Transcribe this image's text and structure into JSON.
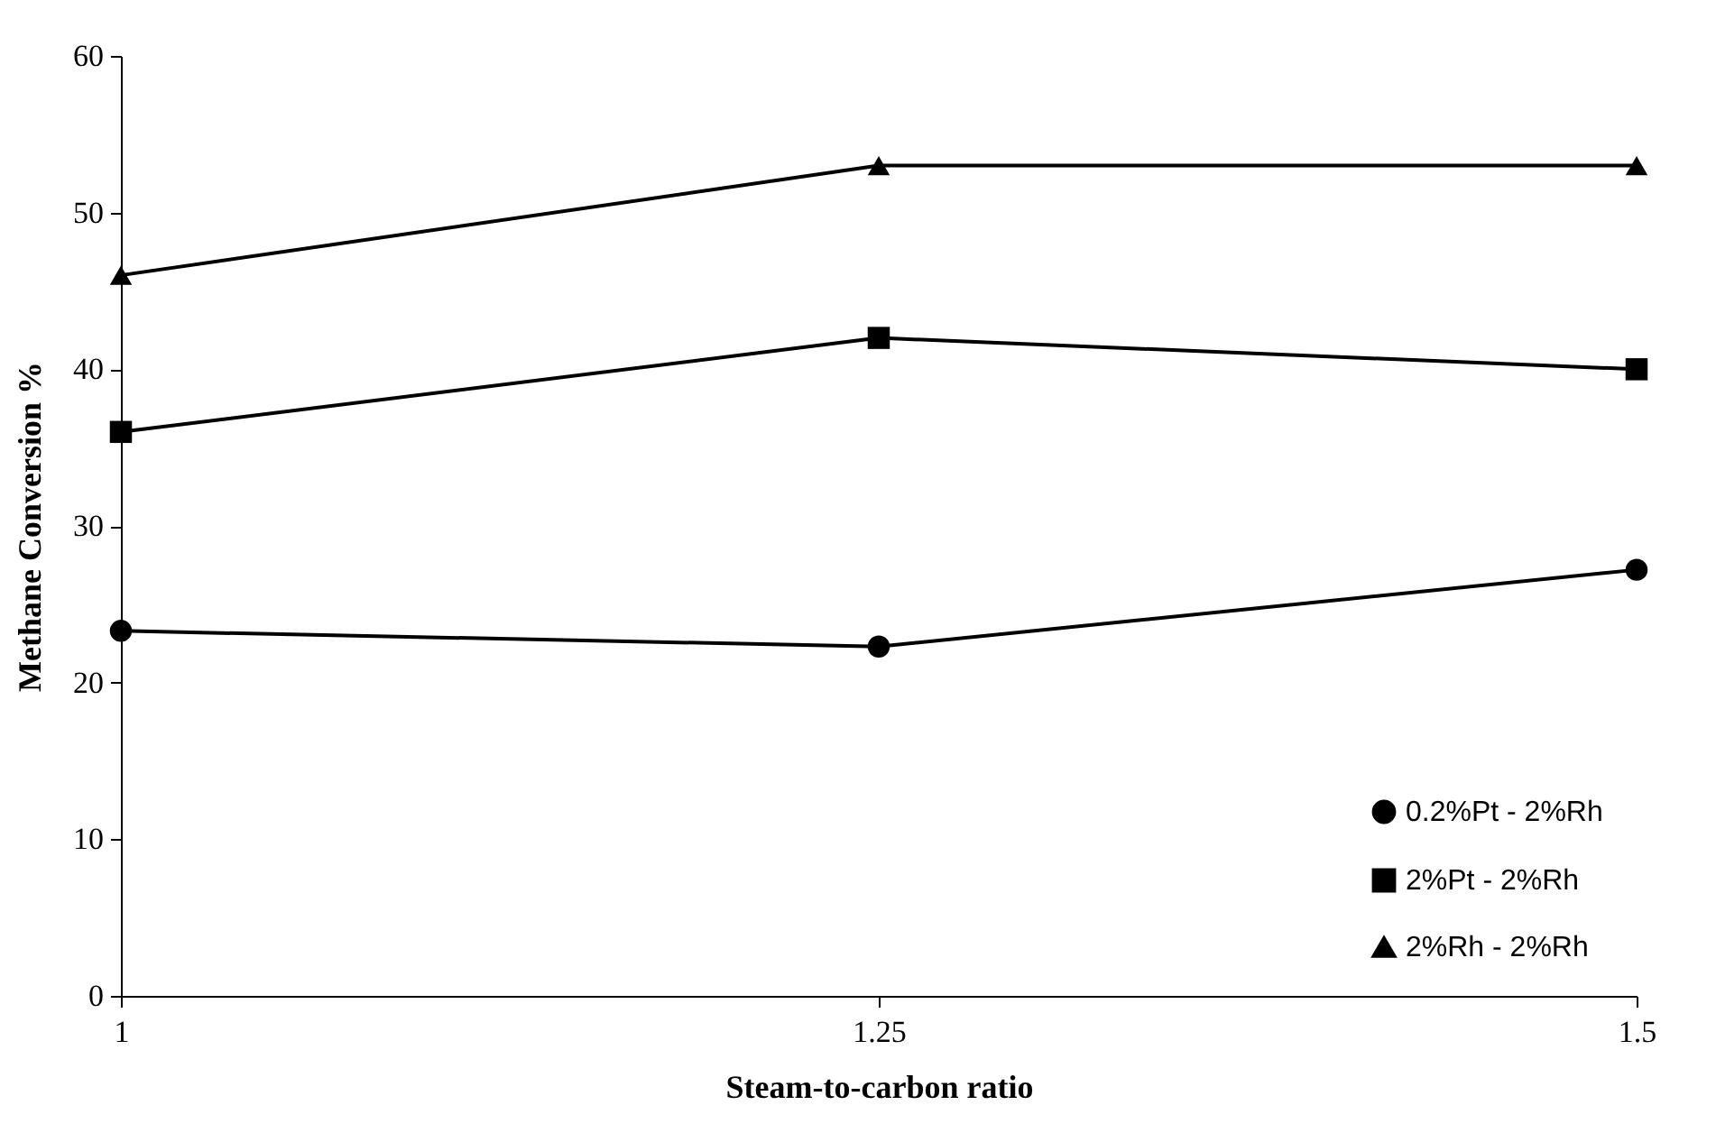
{
  "chart_data": {
    "type": "line",
    "xlabel": "Steam-to-carbon  ratio",
    "ylabel": "Methane Conversion %",
    "x": [
      1,
      1.25,
      1.5
    ],
    "xlim": [
      1,
      1.5
    ],
    "xticks": [
      1,
      1.25,
      1.5
    ],
    "ylim": [
      0,
      60
    ],
    "yticks": [
      0,
      10,
      20,
      30,
      40,
      50,
      60
    ],
    "grid": false,
    "legend": "bottom right",
    "line_style": "solid",
    "series": [
      {
        "name": "0.2%Pt - 2%Rh",
        "color": "#000000",
        "marker": "circle",
        "values": [
          23.3,
          22.3,
          27.2
        ]
      },
      {
        "name": "2%Pt - 2%Rh",
        "color": "#000000",
        "marker": "square",
        "values": [
          36,
          42,
          40
        ]
      },
      {
        "name": "2%Rh - 2%Rh",
        "color": "#000000",
        "marker": "triangle",
        "values": [
          46,
          53,
          53
        ]
      }
    ]
  }
}
